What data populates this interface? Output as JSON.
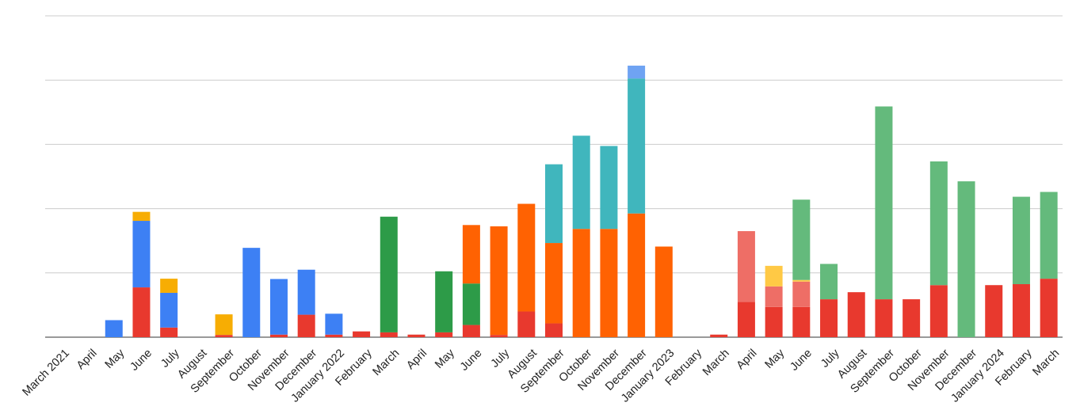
{
  "chart_data": {
    "type": "bar",
    "stacked": true,
    "grid": true,
    "legend": "none",
    "ylim": [
      0,
      100
    ],
    "yticks": [
      0,
      20,
      40,
      60,
      80,
      100
    ],
    "categories": [
      "March 2021",
      "April",
      "May",
      "June",
      "July",
      "August",
      "September",
      "October",
      "November",
      "December",
      "January 2022",
      "February",
      "March",
      "April",
      "May",
      "June",
      "July",
      "August",
      "September",
      "October",
      "November",
      "December",
      "January 2023",
      "February",
      "March",
      "April",
      "May",
      "June",
      "July",
      "August",
      "September",
      "October",
      "November",
      "December",
      "January 2024",
      "February",
      "March"
    ],
    "series": [
      {
        "color": "#e8392e",
        "values": [
          0,
          0,
          0,
          0,
          0,
          0,
          0,
          0,
          0,
          0,
          0,
          0,
          0,
          0,
          0,
          0,
          0,
          0,
          0,
          0,
          0,
          0,
          0,
          0,
          0,
          11,
          9.4,
          9.4,
          11.8,
          14,
          11.8,
          11.8,
          16.2,
          0,
          16.2,
          16.5,
          18.2
        ]
      },
      {
        "color": "#e8392e",
        "values": [
          0,
          0,
          0,
          15.5,
          3,
          0,
          0.7,
          0,
          0.8,
          7,
          0.8,
          1.8,
          1.5,
          0.8,
          1.5,
          3.8,
          0.7,
          8,
          4.3,
          0,
          0,
          0,
          0,
          0,
          0.8,
          0,
          0,
          0,
          0,
          0,
          0,
          0,
          0,
          0,
          0,
          0,
          0
        ]
      },
      {
        "color": "#ee6e66",
        "values": [
          0,
          0,
          0,
          0,
          0,
          0,
          0,
          0,
          0,
          0,
          0,
          0,
          0,
          0,
          0,
          0,
          0,
          0,
          0,
          0,
          0,
          0,
          0,
          0,
          0,
          22,
          6.4,
          7.9,
          0,
          0,
          0,
          0,
          0,
          0,
          0,
          0,
          0
        ]
      },
      {
        "color": "#3d80f4",
        "values": [
          0,
          0,
          5.3,
          20.7,
          10.8,
          0,
          0,
          27.8,
          17.3,
          14,
          6.5,
          0,
          0,
          0,
          0,
          0,
          0,
          0,
          0,
          0,
          0,
          0,
          0,
          0,
          0,
          0,
          0,
          0,
          0,
          0,
          0,
          0,
          0,
          0,
          0,
          0,
          0
        ]
      },
      {
        "color": "#f7ad03",
        "values": [
          0,
          0,
          0,
          2.8,
          4.4,
          0,
          6.4,
          0,
          0,
          0,
          0,
          0,
          0,
          0,
          0,
          0,
          0,
          0,
          0,
          0,
          0,
          0,
          0,
          0,
          0,
          0,
          0,
          0,
          0,
          0,
          0,
          0,
          0,
          0,
          0,
          0,
          0
        ]
      },
      {
        "color": "#ffc945",
        "values": [
          0,
          0,
          0,
          0,
          0,
          0,
          0,
          0,
          0,
          0,
          0,
          0,
          0,
          0,
          0,
          0,
          0,
          0,
          0,
          0,
          0,
          0,
          0,
          0,
          0,
          0,
          6.4,
          0.5,
          0,
          0,
          0,
          0,
          0,
          0,
          0,
          0,
          0
        ]
      },
      {
        "color": "#2d9b48",
        "values": [
          0,
          0,
          0,
          0,
          0,
          0,
          0,
          0,
          0,
          0,
          0,
          0,
          36,
          0,
          19,
          12.9,
          0,
          0,
          0,
          0,
          0,
          0,
          0,
          0,
          0,
          0,
          0,
          0,
          0,
          0,
          0,
          0,
          0,
          0,
          0,
          0,
          0
        ]
      },
      {
        "color": "#ff6202",
        "values": [
          0,
          0,
          0,
          0,
          0,
          0,
          0,
          0,
          0,
          0,
          0,
          0,
          0,
          0,
          0,
          18.2,
          33.8,
          33.5,
          25,
          33.7,
          33.7,
          38.5,
          28.2,
          0,
          0,
          0,
          0,
          0,
          0,
          0,
          0,
          0,
          0,
          0,
          0,
          0,
          0
        ]
      },
      {
        "color": "#40b6bd",
        "values": [
          0,
          0,
          0,
          0,
          0,
          0,
          0,
          0,
          0,
          0,
          0,
          0,
          0,
          0,
          0,
          0,
          0,
          0,
          24.5,
          29,
          25.8,
          42,
          0,
          0,
          0,
          0,
          0,
          0,
          0,
          0,
          0,
          0,
          0,
          0,
          0,
          0,
          0
        ]
      },
      {
        "color": "#6fa3f3",
        "values": [
          0,
          0,
          0,
          0,
          0,
          0,
          0,
          0,
          0,
          0,
          0,
          0,
          0,
          0,
          0,
          0,
          0,
          0,
          0,
          0,
          0,
          4,
          0,
          0,
          0,
          0,
          0,
          0,
          0,
          0,
          0,
          0,
          0,
          0,
          0,
          0,
          0
        ]
      },
      {
        "color": "#64ba7c",
        "values": [
          0,
          0,
          0,
          0,
          0,
          0,
          0,
          0,
          0,
          0,
          0,
          0,
          0,
          0,
          0,
          0,
          0,
          0,
          0,
          0,
          0,
          0,
          0,
          0,
          0,
          0,
          0,
          25,
          11,
          0,
          60,
          0,
          38.5,
          48.5,
          0,
          27.2,
          27
        ]
      }
    ]
  }
}
